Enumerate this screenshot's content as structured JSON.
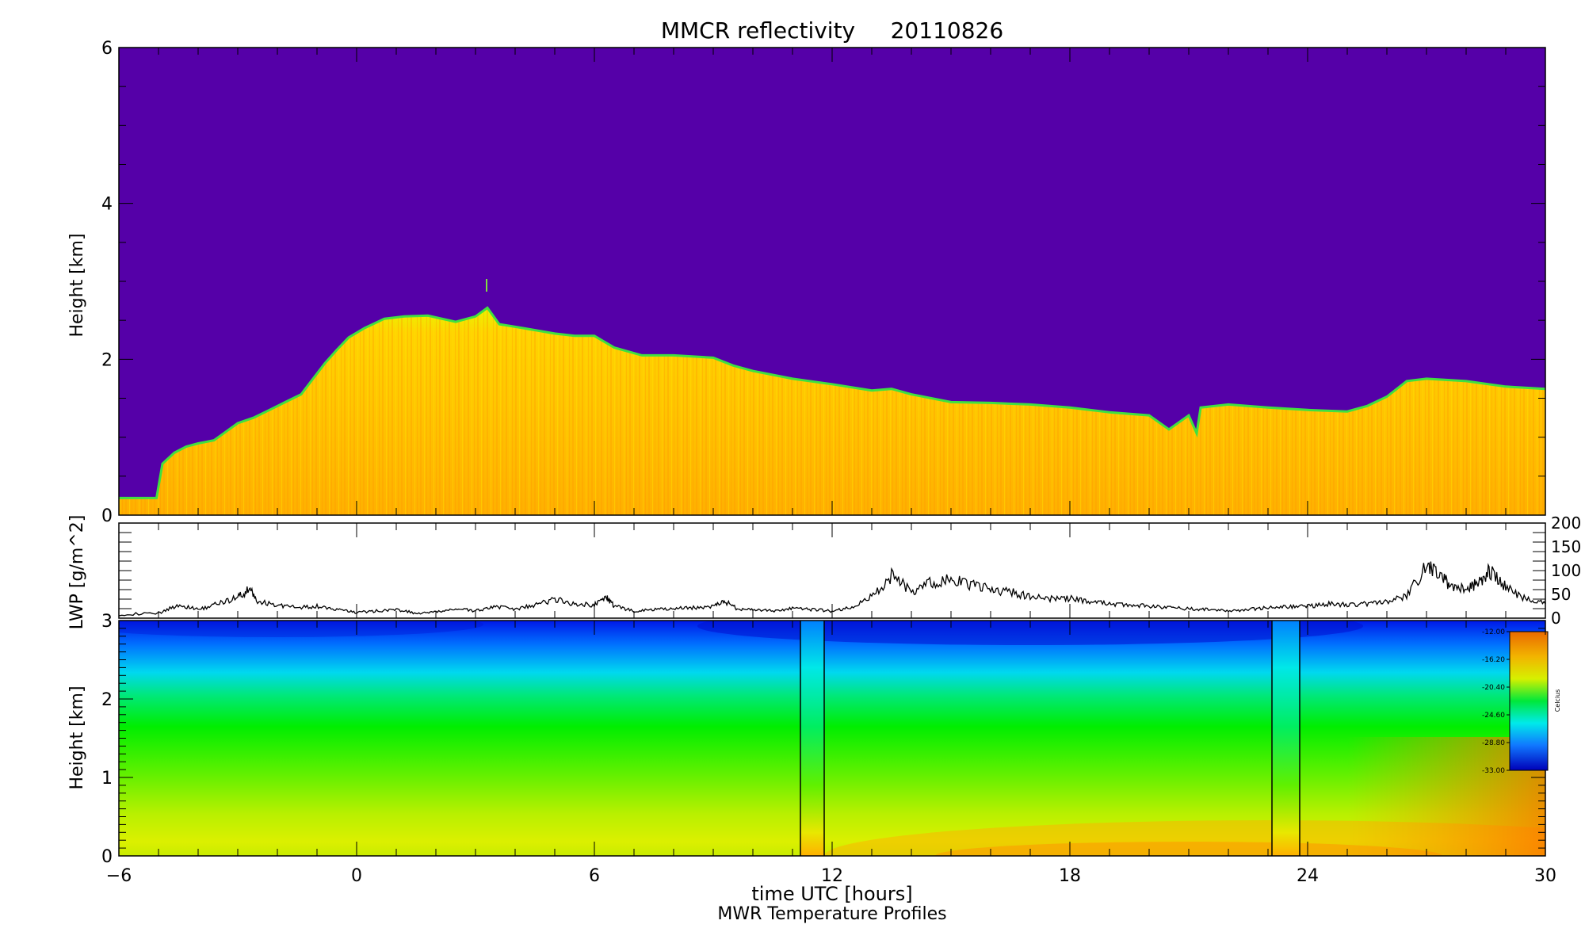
{
  "chart_data": [
    {
      "type": "heatmap",
      "title": "MMCR reflectivity     20110826",
      "xlabel": "",
      "ylabel": "Height [km]",
      "xlim": [
        -6,
        30
      ],
      "ylim": [
        0,
        6
      ],
      "yticks": [
        0,
        2,
        4,
        6
      ],
      "background_color": "#5500a8",
      "cloud_top_km": [
        [
          -6,
          0.22
        ],
        [
          -5.05,
          0.22
        ],
        [
          -4.9,
          0.66
        ],
        [
          -4.6,
          0.8
        ],
        [
          -4.3,
          0.88
        ],
        [
          -4.0,
          0.92
        ],
        [
          -3.6,
          0.96
        ],
        [
          -3.3,
          1.07
        ],
        [
          -3.0,
          1.18
        ],
        [
          -2.6,
          1.25
        ],
        [
          -2.2,
          1.35
        ],
        [
          -1.8,
          1.45
        ],
        [
          -1.4,
          1.55
        ],
        [
          -1.1,
          1.75
        ],
        [
          -0.8,
          1.95
        ],
        [
          -0.5,
          2.12
        ],
        [
          -0.2,
          2.28
        ],
        [
          0.2,
          2.4
        ],
        [
          0.7,
          2.52
        ],
        [
          1.2,
          2.55
        ],
        [
          1.8,
          2.56
        ],
        [
          2.5,
          2.48
        ],
        [
          3.0,
          2.55
        ],
        [
          3.3,
          2.66
        ],
        [
          3.6,
          2.45
        ],
        [
          4.2,
          2.4
        ],
        [
          5.0,
          2.33
        ],
        [
          5.5,
          2.3
        ],
        [
          6.0,
          2.3
        ],
        [
          6.5,
          2.15
        ],
        [
          7.2,
          2.05
        ],
        [
          8.0,
          2.05
        ],
        [
          9.0,
          2.02
        ],
        [
          9.5,
          1.92
        ],
        [
          10.0,
          1.85
        ],
        [
          11.0,
          1.75
        ],
        [
          12.0,
          1.68
        ],
        [
          13.0,
          1.6
        ],
        [
          13.5,
          1.62
        ],
        [
          14.0,
          1.55
        ],
        [
          15.0,
          1.45
        ],
        [
          16.0,
          1.44
        ],
        [
          17.0,
          1.42
        ],
        [
          18.0,
          1.38
        ],
        [
          19.0,
          1.32
        ],
        [
          20.0,
          1.28
        ],
        [
          20.5,
          1.1
        ],
        [
          21.0,
          1.28
        ],
        [
          21.2,
          1.05
        ],
        [
          21.3,
          1.38
        ],
        [
          22.0,
          1.42
        ],
        [
          23.0,
          1.38
        ],
        [
          24.0,
          1.35
        ],
        [
          25.0,
          1.33
        ],
        [
          25.5,
          1.4
        ],
        [
          26.0,
          1.52
        ],
        [
          26.5,
          1.72
        ],
        [
          27.0,
          1.75
        ],
        [
          28.0,
          1.72
        ],
        [
          29.0,
          1.65
        ],
        [
          30.0,
          1.62
        ]
      ]
    },
    {
      "type": "line",
      "ylabel": "LWP [g/m^2]",
      "xlim": [
        -6,
        30
      ],
      "ylim": [
        0,
        200
      ],
      "yticks": [
        0,
        50,
        100,
        150,
        200
      ],
      "series": [
        {
          "x": [
            -6,
            -5,
            -4.5,
            -4,
            -3.5,
            -3,
            -2.7,
            -2.5,
            -2,
            -1.5,
            -1,
            -0.5,
            0,
            0.5,
            1,
            1.5,
            2,
            2.5,
            3,
            3.5,
            4,
            4.5,
            5,
            5.5,
            6,
            6.3,
            6.5,
            7,
            7.5,
            8,
            8.5,
            9,
            9.3,
            9.6,
            10,
            10.5,
            11,
            11.5,
            12,
            12.5,
            13,
            13.5,
            14,
            14.5,
            15,
            15.5,
            16,
            16.5,
            17,
            17.5,
            18,
            18.5,
            19,
            19.5,
            20,
            20.5,
            21,
            21.5,
            22,
            22.5,
            23,
            23.5,
            24,
            24.5,
            25,
            25.5,
            26,
            26.5,
            27,
            27.3,
            27.6,
            28,
            28.3,
            28.6,
            29,
            29.5,
            30
          ],
          "values": [
            8,
            10,
            28,
            18,
            30,
            45,
            60,
            35,
            28,
            22,
            25,
            18,
            12,
            15,
            18,
            10,
            12,
            20,
            15,
            25,
            18,
            28,
            40,
            30,
            28,
            45,
            25,
            15,
            18,
            20,
            22,
            25,
            35,
            20,
            18,
            15,
            20,
            18,
            15,
            22,
            45,
            90,
            55,
            75,
            80,
            70,
            60,
            55,
            45,
            40,
            42,
            35,
            30,
            28,
            25,
            22,
            20,
            18,
            15,
            18,
            22,
            24,
            25,
            30,
            28,
            30,
            35,
            45,
            110,
            90,
            70,
            60,
            75,
            100,
            65,
            40,
            30
          ]
        }
      ]
    },
    {
      "type": "heatmap",
      "ylabel": "Height [km]",
      "xlabel": "time UTC [hours]",
      "subtitle": "MWR Temperature Profiles",
      "xlim": [
        -6,
        30
      ],
      "ylim": [
        0,
        3
      ],
      "yticks": [
        0,
        1,
        2,
        3
      ],
      "xticks": [
        -6,
        0,
        6,
        12,
        18,
        24,
        30
      ],
      "gap_bands_hours": [
        [
          11.2,
          11.8
        ],
        [
          23.1,
          23.8
        ]
      ],
      "colorbar": {
        "label": "Celcius",
        "ticks": [
          "-12.00",
          "-16.20",
          "-20.40",
          "-24.60",
          "-28.80",
          "-33.00"
        ],
        "colors": [
          "#ea6a00",
          "#f2b400",
          "#d6f000",
          "#00e83a",
          "#00eaea",
          "#1078ff",
          "#0000b8"
        ]
      }
    }
  ]
}
